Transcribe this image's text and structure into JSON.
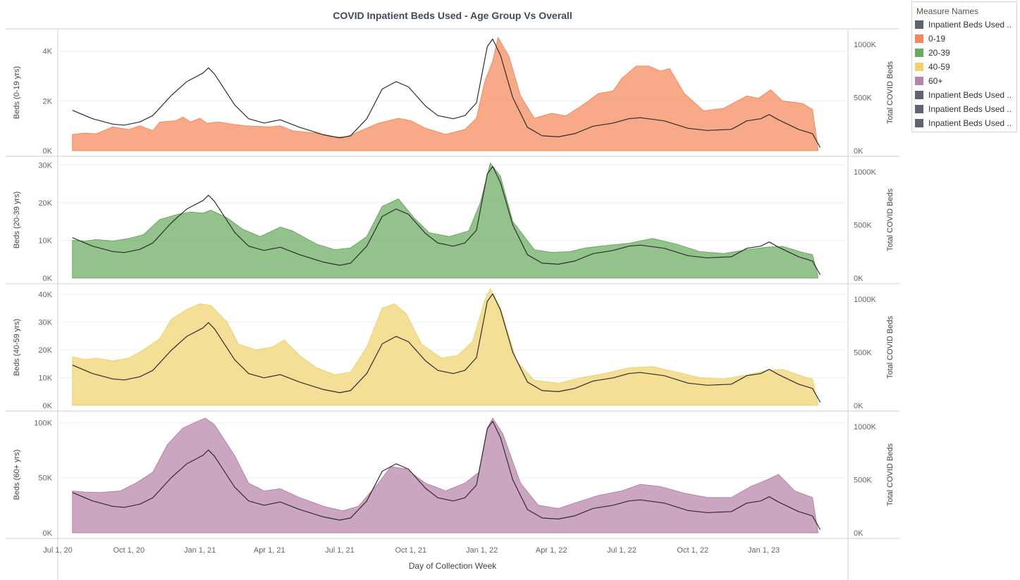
{
  "chart_data": {
    "type": "area",
    "title": "COVID Inpatient Beds Used - Age Group Vs Overall",
    "xlabel": "Day of Collection Week",
    "x_ticks": [
      "Jul 1, 20",
      "Oct 1, 20",
      "Jan 1, 21",
      "Apr 1, 21",
      "Jul 1, 21",
      "Oct 1, 21",
      "Jan 1, 22",
      "Apr 1, 22",
      "Jul 1, 22",
      "Oct 1, 22",
      "Jan 1, 23"
    ],
    "x_range": [
      "2020-07-01",
      "2023-04-20"
    ],
    "secondary_ylabel": "Total COVID Beds",
    "legend": {
      "title": "Measure Names",
      "placement": "right",
      "items": [
        {
          "name": "Inpatient Beds Used ..",
          "color": "#5d6470"
        },
        {
          "name": "0-19",
          "color": "#f5895a"
        },
        {
          "name": "20-39",
          "color": "#6aaa5f"
        },
        {
          "name": "40-59",
          "color": "#f0d36f"
        },
        {
          "name": "60+",
          "color": "#b783a8"
        },
        {
          "name": "Inpatient Beds Used ..",
          "color": "#5d6470"
        },
        {
          "name": "Inpatient Beds Used ..",
          "color": "#5d6470"
        },
        {
          "name": "Inpatient Beds Used ..",
          "color": "#5d6470"
        }
      ]
    },
    "overall": {
      "ylabel": "Total COVID Beds",
      "ylim": [
        0,
        1100000
      ],
      "ticks": [
        0,
        500000,
        1000000
      ],
      "tick_labels": [
        "0K",
        "500K",
        "1000K"
      ],
      "points": [
        [
          "2020-07-20",
          380000
        ],
        [
          "2020-08-15",
          300000
        ],
        [
          "2020-09-10",
          250000
        ],
        [
          "2020-09-25",
          240000
        ],
        [
          "2020-10-15",
          270000
        ],
        [
          "2020-11-01",
          330000
        ],
        [
          "2020-11-25",
          520000
        ],
        [
          "2020-12-15",
          650000
        ],
        [
          "2021-01-05",
          730000
        ],
        [
          "2021-01-12",
          780000
        ],
        [
          "2021-01-20",
          720000
        ],
        [
          "2021-02-15",
          430000
        ],
        [
          "2021-03-05",
          300000
        ],
        [
          "2021-03-25",
          260000
        ],
        [
          "2021-04-15",
          290000
        ],
        [
          "2021-05-10",
          220000
        ],
        [
          "2021-06-10",
          150000
        ],
        [
          "2021-07-01",
          120000
        ],
        [
          "2021-07-15",
          140000
        ],
        [
          "2021-08-05",
          300000
        ],
        [
          "2021-08-25",
          580000
        ],
        [
          "2021-09-12",
          650000
        ],
        [
          "2021-09-28",
          600000
        ],
        [
          "2021-10-20",
          420000
        ],
        [
          "2021-11-05",
          330000
        ],
        [
          "2021-11-25",
          300000
        ],
        [
          "2021-12-10",
          330000
        ],
        [
          "2021-12-25",
          450000
        ],
        [
          "2022-01-08",
          980000
        ],
        [
          "2022-01-15",
          1050000
        ],
        [
          "2022-01-25",
          900000
        ],
        [
          "2022-02-10",
          500000
        ],
        [
          "2022-03-01",
          220000
        ],
        [
          "2022-03-20",
          140000
        ],
        [
          "2022-04-10",
          130000
        ],
        [
          "2022-05-01",
          160000
        ],
        [
          "2022-05-25",
          230000
        ],
        [
          "2022-06-20",
          260000
        ],
        [
          "2022-07-10",
          300000
        ],
        [
          "2022-07-25",
          310000
        ],
        [
          "2022-08-25",
          280000
        ],
        [
          "2022-09-25",
          210000
        ],
        [
          "2022-10-20",
          190000
        ],
        [
          "2022-11-20",
          200000
        ],
        [
          "2022-12-10",
          280000
        ],
        [
          "2022-12-28",
          300000
        ],
        [
          "2023-01-08",
          340000
        ],
        [
          "2023-01-20",
          290000
        ],
        [
          "2023-02-15",
          200000
        ],
        [
          "2023-03-05",
          160000
        ],
        [
          "2023-03-15",
          30000
        ]
      ]
    },
    "panels": [
      {
        "name": "0-19",
        "ylabel": "Beds (0-19 yrs)",
        "color": "#f5895a",
        "ylim": [
          0,
          4700
        ],
        "ticks": [
          0,
          2000,
          4000
        ],
        "tick_labels": [
          "0K",
          "2K",
          "4K"
        ],
        "points": [
          [
            "2020-07-20",
            650
          ],
          [
            "2020-08-05",
            700
          ],
          [
            "2020-08-20",
            680
          ],
          [
            "2020-09-10",
            950
          ],
          [
            "2020-10-01",
            850
          ],
          [
            "2020-10-15",
            1000
          ],
          [
            "2020-11-01",
            800
          ],
          [
            "2020-11-10",
            1150
          ],
          [
            "2020-12-01",
            1200
          ],
          [
            "2020-12-10",
            1350
          ],
          [
            "2020-12-20",
            1150
          ],
          [
            "2021-01-01",
            1300
          ],
          [
            "2021-01-10",
            1100
          ],
          [
            "2021-01-25",
            1150
          ],
          [
            "2021-02-15",
            1050
          ],
          [
            "2021-03-01",
            1000
          ],
          [
            "2021-04-01",
            950
          ],
          [
            "2021-04-15",
            1000
          ],
          [
            "2021-05-01",
            800
          ],
          [
            "2021-06-01",
            700
          ],
          [
            "2021-06-20",
            550
          ],
          [
            "2021-07-10",
            550
          ],
          [
            "2021-08-01",
            850
          ],
          [
            "2021-08-20",
            1100
          ],
          [
            "2021-09-15",
            1300
          ],
          [
            "2021-10-01",
            1200
          ],
          [
            "2021-10-20",
            900
          ],
          [
            "2021-11-15",
            650
          ],
          [
            "2021-12-10",
            850
          ],
          [
            "2021-12-25",
            1300
          ],
          [
            "2022-01-05",
            2800
          ],
          [
            "2022-01-15",
            3600
          ],
          [
            "2022-01-22",
            4550
          ],
          [
            "2022-02-05",
            3800
          ],
          [
            "2022-02-20",
            2200
          ],
          [
            "2022-03-10",
            1300
          ],
          [
            "2022-04-01",
            1500
          ],
          [
            "2022-04-20",
            1400
          ],
          [
            "2022-05-10",
            1800
          ],
          [
            "2022-06-01",
            2300
          ],
          [
            "2022-06-20",
            2400
          ],
          [
            "2022-07-01",
            2900
          ],
          [
            "2022-07-20",
            3400
          ],
          [
            "2022-08-05",
            3400
          ],
          [
            "2022-08-20",
            3200
          ],
          [
            "2022-09-01",
            3300
          ],
          [
            "2022-09-20",
            2300
          ],
          [
            "2022-10-15",
            1600
          ],
          [
            "2022-11-10",
            1700
          ],
          [
            "2022-12-10",
            2200
          ],
          [
            "2022-12-25",
            2100
          ],
          [
            "2023-01-10",
            2450
          ],
          [
            "2023-01-25",
            2000
          ],
          [
            "2023-02-20",
            1900
          ],
          [
            "2023-03-05",
            1650
          ],
          [
            "2023-03-12",
            100
          ]
        ]
      },
      {
        "name": "20-39",
        "ylabel": "Beds (20-39 yrs)",
        "color": "#6aaa5f",
        "ylim": [
          0,
          31000
        ],
        "ticks": [
          0,
          10000,
          20000,
          30000
        ],
        "tick_labels": [
          "0K",
          "10K",
          "20K",
          "30K"
        ],
        "points": [
          [
            "2020-07-20",
            10000
          ],
          [
            "2020-08-05",
            9800
          ],
          [
            "2020-08-20",
            10200
          ],
          [
            "2020-09-10",
            9800
          ],
          [
            "2020-10-01",
            10500
          ],
          [
            "2020-10-20",
            11500
          ],
          [
            "2020-11-10",
            15500
          ],
          [
            "2020-12-05",
            17000
          ],
          [
            "2020-12-20",
            17500
          ],
          [
            "2021-01-05",
            17200
          ],
          [
            "2021-01-15",
            18000
          ],
          [
            "2021-02-05",
            16000
          ],
          [
            "2021-02-25",
            13000
          ],
          [
            "2021-03-20",
            11000
          ],
          [
            "2021-04-15",
            13500
          ],
          [
            "2021-05-01",
            12500
          ],
          [
            "2021-06-01",
            9000
          ],
          [
            "2021-06-25",
            7500
          ],
          [
            "2021-07-15",
            8000
          ],
          [
            "2021-08-05",
            11000
          ],
          [
            "2021-08-25",
            19000
          ],
          [
            "2021-09-15",
            21000
          ],
          [
            "2021-10-05",
            16000
          ],
          [
            "2021-10-25",
            12000
          ],
          [
            "2021-11-20",
            11000
          ],
          [
            "2021-12-15",
            12500
          ],
          [
            "2021-12-30",
            20000
          ],
          [
            "2022-01-12",
            30500
          ],
          [
            "2022-01-25",
            27000
          ],
          [
            "2022-02-10",
            15000
          ],
          [
            "2022-03-10",
            7500
          ],
          [
            "2022-04-01",
            6800
          ],
          [
            "2022-04-25",
            7000
          ],
          [
            "2022-05-15",
            8000
          ],
          [
            "2022-06-15",
            8700
          ],
          [
            "2022-07-10",
            9200
          ],
          [
            "2022-08-10",
            10500
          ],
          [
            "2022-09-10",
            9000
          ],
          [
            "2022-10-10",
            7000
          ],
          [
            "2022-11-10",
            6500
          ],
          [
            "2022-12-10",
            7500
          ],
          [
            "2023-01-05",
            8200
          ],
          [
            "2023-01-25",
            8400
          ],
          [
            "2023-02-20",
            6800
          ],
          [
            "2023-03-05",
            6200
          ],
          [
            "2023-03-12",
            500
          ]
        ]
      },
      {
        "name": "40-59",
        "ylabel": "Beds (40-59 yrs)",
        "color": "#f0d36f",
        "ylim": [
          0,
          42000
        ],
        "ticks": [
          0,
          10000,
          20000,
          30000,
          40000
        ],
        "tick_labels": [
          "0K",
          "10K",
          "20K",
          "30K",
          "40K"
        ],
        "points": [
          [
            "2020-07-20",
            17500
          ],
          [
            "2020-08-05",
            16500
          ],
          [
            "2020-08-20",
            17000
          ],
          [
            "2020-09-10",
            16000
          ],
          [
            "2020-10-01",
            17000
          ],
          [
            "2020-10-20",
            20000
          ],
          [
            "2020-11-10",
            24000
          ],
          [
            "2020-11-25",
            31000
          ],
          [
            "2020-12-15",
            34500
          ],
          [
            "2021-01-01",
            36500
          ],
          [
            "2021-01-15",
            36000
          ],
          [
            "2021-02-05",
            30000
          ],
          [
            "2021-02-20",
            22000
          ],
          [
            "2021-03-15",
            20000
          ],
          [
            "2021-04-05",
            21000
          ],
          [
            "2021-04-20",
            23500
          ],
          [
            "2021-05-10",
            18000
          ],
          [
            "2021-06-01",
            13500
          ],
          [
            "2021-06-25",
            11000
          ],
          [
            "2021-07-15",
            12000
          ],
          [
            "2021-08-05",
            21000
          ],
          [
            "2021-08-25",
            35000
          ],
          [
            "2021-09-10",
            36500
          ],
          [
            "2021-09-25",
            33000
          ],
          [
            "2021-10-15",
            22000
          ],
          [
            "2021-11-10",
            17000
          ],
          [
            "2021-12-01",
            18000
          ],
          [
            "2021-12-20",
            23000
          ],
          [
            "2022-01-05",
            38000
          ],
          [
            "2022-01-12",
            42000
          ],
          [
            "2022-01-25",
            35000
          ],
          [
            "2022-02-15",
            16000
          ],
          [
            "2022-03-10",
            9000
          ],
          [
            "2022-04-10",
            8000
          ],
          [
            "2022-05-10",
            10000
          ],
          [
            "2022-06-10",
            11500
          ],
          [
            "2022-07-10",
            13500
          ],
          [
            "2022-08-10",
            14000
          ],
          [
            "2022-09-10",
            12000
          ],
          [
            "2022-10-10",
            10000
          ],
          [
            "2022-11-10",
            9500
          ],
          [
            "2022-12-10",
            11000
          ],
          [
            "2023-01-05",
            12500
          ],
          [
            "2023-01-25",
            13000
          ],
          [
            "2023-02-20",
            10500
          ],
          [
            "2023-03-05",
            9500
          ],
          [
            "2023-03-12",
            500
          ]
        ]
      },
      {
        "name": "60+",
        "ylabel": "Beds (60+ yrs)",
        "color": "#b783a8",
        "ylim": [
          0,
          106000
        ],
        "ticks": [
          0,
          50000,
          100000
        ],
        "tick_labels": [
          "0K",
          "50K",
          "100K"
        ],
        "points": [
          [
            "2020-07-20",
            38000
          ],
          [
            "2020-08-05",
            37000
          ],
          [
            "2020-08-25",
            36500
          ],
          [
            "2020-09-20",
            38000
          ],
          [
            "2020-10-10",
            45000
          ],
          [
            "2020-11-01",
            55000
          ],
          [
            "2020-11-20",
            80000
          ],
          [
            "2020-12-10",
            95000
          ],
          [
            "2020-12-25",
            100000
          ],
          [
            "2021-01-08",
            104000
          ],
          [
            "2021-01-20",
            98000
          ],
          [
            "2021-02-15",
            70000
          ],
          [
            "2021-03-05",
            45000
          ],
          [
            "2021-03-25",
            38000
          ],
          [
            "2021-04-15",
            40000
          ],
          [
            "2021-05-10",
            32000
          ],
          [
            "2021-06-10",
            24000
          ],
          [
            "2021-07-05",
            20000
          ],
          [
            "2021-07-25",
            24000
          ],
          [
            "2021-08-20",
            45000
          ],
          [
            "2021-09-05",
            60000
          ],
          [
            "2021-09-25",
            58000
          ],
          [
            "2021-10-20",
            45000
          ],
          [
            "2021-11-15",
            38000
          ],
          [
            "2021-12-10",
            45000
          ],
          [
            "2021-12-28",
            55000
          ],
          [
            "2022-01-08",
            95000
          ],
          [
            "2022-01-15",
            104000
          ],
          [
            "2022-01-28",
            90000
          ],
          [
            "2022-02-20",
            45000
          ],
          [
            "2022-03-15",
            25000
          ],
          [
            "2022-04-10",
            22000
          ],
          [
            "2022-05-01",
            27000
          ],
          [
            "2022-06-01",
            34000
          ],
          [
            "2022-07-01",
            38000
          ],
          [
            "2022-07-25",
            44000
          ],
          [
            "2022-08-20",
            42000
          ],
          [
            "2022-09-20",
            36000
          ],
          [
            "2022-10-20",
            32000
          ],
          [
            "2022-11-20",
            32000
          ],
          [
            "2022-12-15",
            42000
          ],
          [
            "2023-01-05",
            48000
          ],
          [
            "2023-01-20",
            53000
          ],
          [
            "2023-02-10",
            38000
          ],
          [
            "2023-03-05",
            32000
          ],
          [
            "2023-03-12",
            1000
          ]
        ]
      }
    ]
  }
}
